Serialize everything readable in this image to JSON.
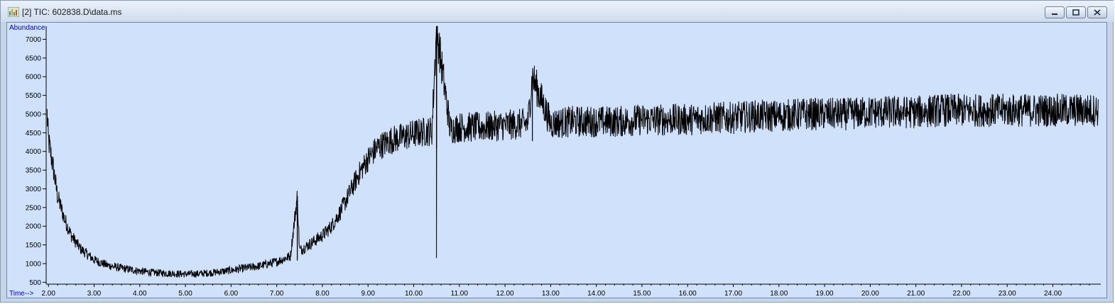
{
  "window": {
    "title": "[2] TIC: 602838.D\\data.ms"
  },
  "chart_data": {
    "type": "line",
    "ylabel": "Abundance",
    "xlabel": "Time-->",
    "xlim": [
      1.95,
      25.05
    ],
    "ylim": [
      450,
      7350
    ],
    "x_ticks": [
      "2.00",
      "3.00",
      "4.00",
      "5.00",
      "6.00",
      "7.00",
      "8.00",
      "9.00",
      "10.00",
      "11.00",
      "12.00",
      "13.00",
      "14.00",
      "15.00",
      "16.00",
      "17.00",
      "18.00",
      "19.00",
      "20.00",
      "21.00",
      "22.00",
      "23.00",
      "24.00"
    ],
    "y_ticks": [
      "500",
      "1000",
      "1500",
      "2000",
      "2500",
      "3000",
      "3500",
      "4000",
      "4500",
      "5000",
      "5500",
      "6000",
      "6500",
      "7000"
    ],
    "series": [
      {
        "color": "#000000",
        "x": [
          1.97,
          2.0,
          2.1,
          2.2,
          2.35,
          2.5,
          2.7,
          3.0,
          3.3,
          3.6,
          4.0,
          4.3,
          4.6,
          5.0,
          5.3,
          5.6,
          6.0,
          6.3,
          6.6,
          7.0,
          7.3,
          7.45,
          7.5,
          7.7,
          8.0,
          8.2,
          8.4,
          8.6,
          8.8,
          9.0,
          9.2,
          9.5,
          9.8,
          10.1,
          10.4,
          10.5,
          10.8,
          11.0,
          11.5,
          12.0,
          12.5,
          12.6,
          13.0,
          13.5,
          14.0,
          14.5,
          15.0,
          15.5,
          16.0,
          16.5,
          17.0,
          17.5,
          18.0,
          18.5,
          19.0,
          19.5,
          20.0,
          20.5,
          21.0,
          21.5,
          22.0,
          22.5,
          23.0,
          23.5,
          24.0,
          24.5,
          25.0
        ],
        "y": [
          5000,
          4300,
          3600,
          2800,
          2200,
          1750,
          1400,
          1100,
          950,
          880,
          800,
          760,
          740,
          720,
          730,
          760,
          820,
          880,
          930,
          1050,
          1200,
          2800,
          1350,
          1500,
          1750,
          2000,
          2400,
          2900,
          3400,
          3800,
          4100,
          4300,
          4400,
          4500,
          4550,
          7300,
          4600,
          4650,
          4650,
          4700,
          4750,
          6000,
          4750,
          4800,
          4800,
          4800,
          4850,
          4850,
          4850,
          4900,
          4900,
          4950,
          4950,
          5000,
          5000,
          5000,
          5050,
          5050,
          5050,
          5100,
          5100,
          5100,
          5100,
          5100,
          5100,
          5100,
          5100
        ]
      }
    ]
  }
}
